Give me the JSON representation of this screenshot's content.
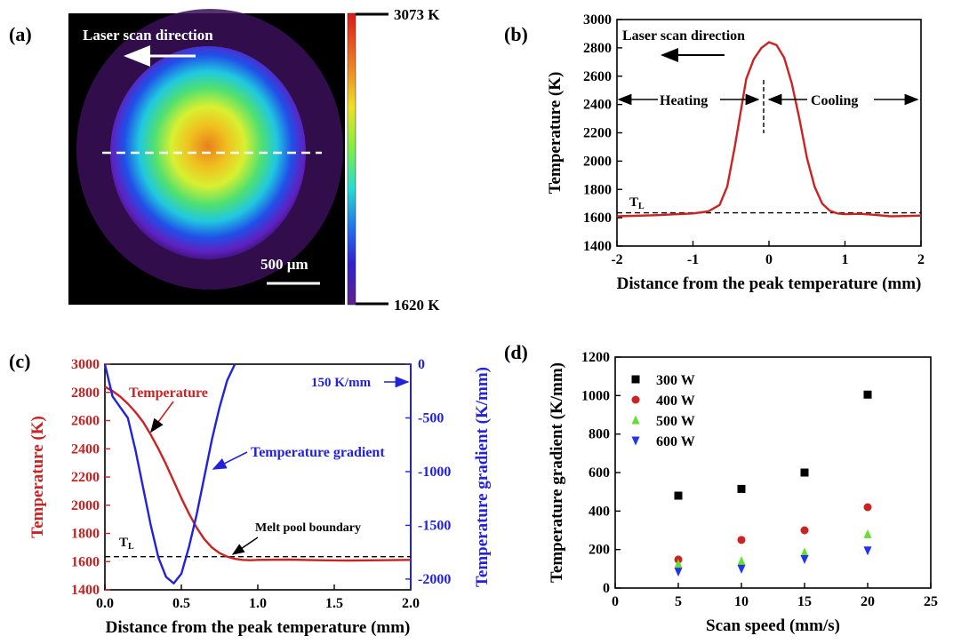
{
  "panels": {
    "a": {
      "label": "(a)",
      "arrow_text": "Laser scan direction",
      "scale_text": "500 µm",
      "colorbar_max": "3073 K",
      "colorbar_min": "1620 K"
    },
    "b": {
      "label": "(b)",
      "arrow_text": "Laser scan direction",
      "heating": "Heating",
      "cooling": "Cooling",
      "tl_main": "T",
      "tl_sub": "L"
    },
    "c": {
      "label": "(c)",
      "temperature_label": "Temperature",
      "gradient_label": "Temperature gradient",
      "boundary_label": "Melt pool boundary",
      "gradient_value_label": "150 K/mm",
      "tl_main": "T",
      "tl_sub": "L"
    },
    "d": {
      "label": "(d)"
    }
  },
  "colors": {
    "temperature_curve": "#cc2222",
    "gradient_curve": "#2222dd",
    "axis_red": "#cc2222",
    "axis_blue": "#2222dd",
    "series_300": "#000000",
    "series_400": "#cc2222",
    "series_500": "#66dd33",
    "series_600": "#2233ee"
  },
  "chart_data": [
    {
      "id": "b",
      "type": "line",
      "xlabel": "Distance from the peak temperature (mm)",
      "ylabel": "Temperature (K)",
      "xlim": [
        -2,
        2
      ],
      "ylim": [
        1400,
        3000
      ],
      "xticks": [
        "-2",
        "-1",
        "0",
        "1",
        "2"
      ],
      "yticks": [
        "1400",
        "1600",
        "1800",
        "2000",
        "2200",
        "2400",
        "2600",
        "2800",
        "3000"
      ],
      "liquidus_T": 1635,
      "series": [
        {
          "x": [
            -2.0,
            -1.5,
            -1.0,
            -0.8,
            -0.65,
            -0.55,
            -0.45,
            -0.3,
            -0.2,
            -0.1,
            0.0,
            0.1,
            0.2,
            0.3,
            0.4,
            0.5,
            0.6,
            0.7,
            0.8,
            0.9,
            1.0,
            1.2,
            1.4,
            1.6,
            1.8,
            2.0
          ],
          "y": [
            1610,
            1618,
            1630,
            1645,
            1690,
            1820,
            2100,
            2580,
            2720,
            2800,
            2840,
            2820,
            2730,
            2550,
            2300,
            2020,
            1820,
            1700,
            1650,
            1630,
            1625,
            1628,
            1620,
            1610,
            1612,
            1615
          ]
        }
      ]
    },
    {
      "id": "c",
      "type": "line",
      "xlabel": "Distance from the peak temperature (mm)",
      "ylabel": "Temperature (K)",
      "y2label": "Temperature gradient (K/mm)",
      "xlim": [
        0,
        2
      ],
      "ylim": [
        1400,
        3000
      ],
      "y2lim": [
        -2100,
        0
      ],
      "xticks": [
        "0.0",
        "0.5",
        "1.0",
        "1.5",
        "2.0"
      ],
      "yticks": [
        "1400",
        "1600",
        "1800",
        "2000",
        "2200",
        "2400",
        "2600",
        "2800",
        "3000"
      ],
      "y2ticks": [
        "-2000",
        "-1500",
        "-1000",
        "-500",
        "0"
      ],
      "liquidus_T": 1635,
      "series": [
        {
          "axis": "left",
          "x": [
            0.0,
            0.05,
            0.1,
            0.15,
            0.2,
            0.25,
            0.3,
            0.35,
            0.4,
            0.45,
            0.5,
            0.55,
            0.6,
            0.65,
            0.7,
            0.75,
            0.8,
            0.85,
            0.9,
            0.95,
            1.0,
            1.2,
            1.4,
            1.6,
            1.8,
            2.0
          ],
          "y": [
            2840,
            2810,
            2770,
            2720,
            2660,
            2590,
            2500,
            2400,
            2290,
            2170,
            2050,
            1940,
            1840,
            1760,
            1700,
            1660,
            1635,
            1620,
            1612,
            1610,
            1612,
            1614,
            1610,
            1608,
            1610,
            1612
          ]
        },
        {
          "axis": "right",
          "x": [
            0.0,
            0.05,
            0.1,
            0.15,
            0.2,
            0.25,
            0.3,
            0.35,
            0.4,
            0.45,
            0.5,
            0.55,
            0.6,
            0.65,
            0.7,
            0.75,
            0.8,
            0.85
          ],
          "y": [
            0,
            -300,
            -400,
            -500,
            -800,
            -1150,
            -1500,
            -1800,
            -1980,
            -2040,
            -1950,
            -1700,
            -1400,
            -1050,
            -700,
            -400,
            -150,
            0
          ]
        }
      ]
    },
    {
      "id": "d",
      "type": "scatter",
      "xlabel": "Scan speed (mm/s)",
      "ylabel": "Temperature gradient (K/mm)",
      "xlim": [
        0,
        25
      ],
      "ylim": [
        0,
        1200
      ],
      "xticks": [
        "0",
        "5",
        "10",
        "15",
        "20",
        "25"
      ],
      "yticks": [
        "0",
        "200",
        "400",
        "600",
        "800",
        "1000",
        "1200"
      ],
      "legend_position": "top-left",
      "series": [
        {
          "name": "300 W",
          "marker": "square",
          "x": [
            5,
            10,
            15,
            20
          ],
          "y": [
            480,
            515,
            600,
            1005
          ]
        },
        {
          "name": "400 W",
          "marker": "circle",
          "x": [
            5,
            10,
            15,
            20
          ],
          "y": [
            148,
            250,
            300,
            420
          ]
        },
        {
          "name": "500 W",
          "marker": "triangle-up",
          "x": [
            5,
            10,
            15,
            20
          ],
          "y": [
            125,
            140,
            185,
            280
          ]
        },
        {
          "name": "600 W",
          "marker": "triangle-down",
          "x": [
            5,
            10,
            15,
            20
          ],
          "y": [
            85,
            100,
            150,
            195
          ]
        }
      ]
    }
  ]
}
